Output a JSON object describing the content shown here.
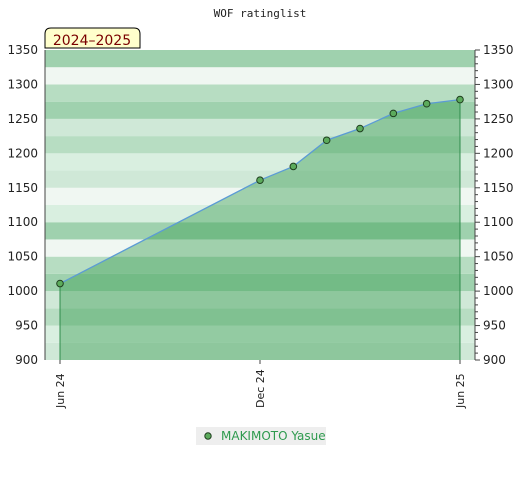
{
  "chart_data": {
    "type": "area",
    "title": "WOF ratinglist",
    "season_label": "2024–2025",
    "xlabel": "",
    "ylabel": "",
    "ylim": [
      900,
      1350
    ],
    "yticks": [
      900,
      950,
      1000,
      1050,
      1100,
      1150,
      1200,
      1250,
      1300,
      1350
    ],
    "xticks": [
      {
        "label": "Jun 24",
        "month_index": 0
      },
      {
        "label": "Dec 24",
        "month_index": 6
      },
      {
        "label": "Jun 25",
        "month_index": 12
      }
    ],
    "xlim_months": [
      -0.45,
      12.45
    ],
    "series": [
      {
        "name": "MAKIMOTO Yasue",
        "points": [
          {
            "month_index": 0,
            "value": 1011
          },
          {
            "month_index": 6,
            "value": 1161
          },
          {
            "month_index": 7,
            "value": 1181
          },
          {
            "month_index": 8,
            "value": 1219
          },
          {
            "month_index": 9,
            "value": 1236
          },
          {
            "month_index": 10,
            "value": 1258
          },
          {
            "month_index": 11,
            "value": 1272
          },
          {
            "month_index": 12,
            "value": 1278
          }
        ]
      }
    ],
    "legend_position": "bottom-center",
    "grid": true,
    "colors": {
      "line": "#5b9bd5",
      "fill": "#3f9f57",
      "fill_opacity": 0.45,
      "marker_fill": "#5cab5c",
      "marker_stroke": "#1f3f1f",
      "band_colors": [
        "#cfe8d7",
        "#f0f7f2",
        "#b7ddc2",
        "#d9efe0",
        "#9fd1ae"
      ],
      "season_label_bg": "#ffffcc",
      "legend_bg": "#eeeeee"
    }
  }
}
